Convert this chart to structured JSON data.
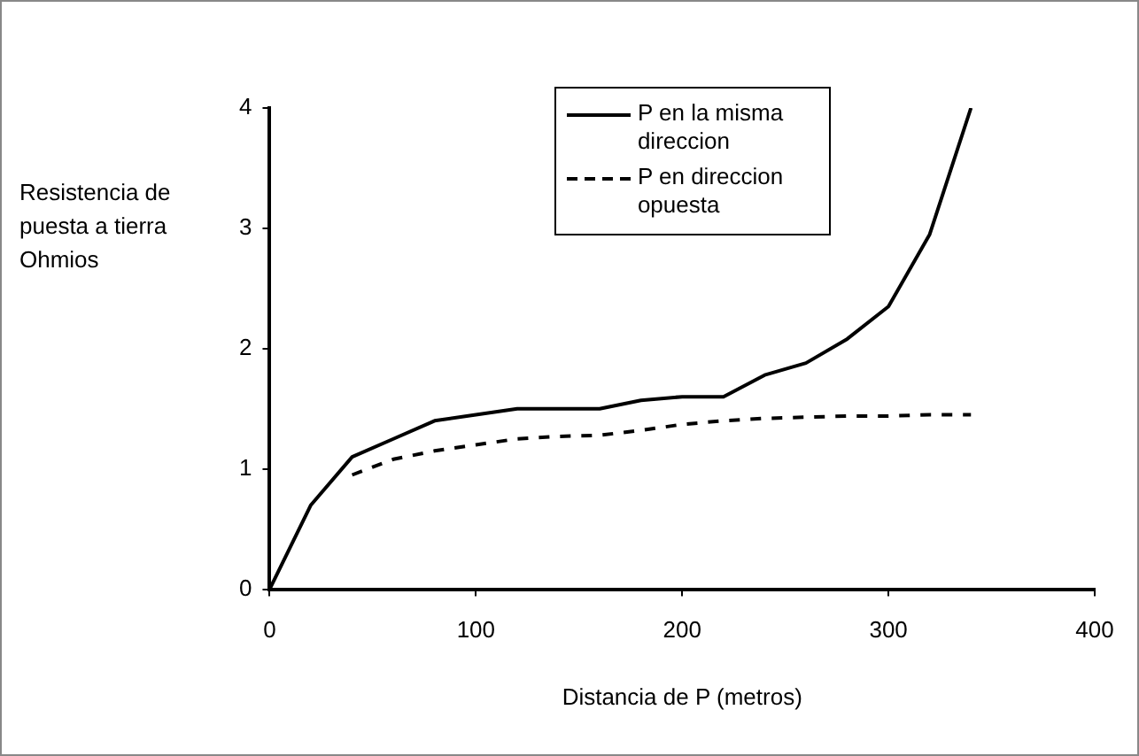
{
  "chart_data": {
    "type": "line",
    "xlabel": "Distancia de P (metros)",
    "ylabel": "Resistencia de puesta a tierra Ohmios",
    "xlim": [
      0,
      400
    ],
    "xticks": [
      0,
      100,
      200,
      300,
      400
    ],
    "ylim": [
      0,
      4
    ],
    "yticks": [
      0,
      1,
      2,
      3,
      4
    ],
    "grid": false,
    "legend": "top right",
    "marker": "none",
    "series": [
      {
        "name": "P en la misma direccion",
        "color": "#000000",
        "line_style": "solid",
        "x": [
          0,
          20,
          40,
          60,
          80,
          100,
          120,
          140,
          160,
          180,
          200,
          220,
          240,
          260,
          280,
          300,
          320,
          340
        ],
        "values": [
          0,
          0.7,
          1.1,
          1.25,
          1.4,
          1.45,
          1.5,
          1.5,
          1.5,
          1.57,
          1.6,
          1.6,
          1.78,
          1.88,
          2.08,
          2.35,
          2.95,
          4
        ]
      },
      {
        "name": "P en direccion opuesta",
        "color": "#000000",
        "line_style": "dashed",
        "x": [
          40,
          60,
          80,
          100,
          120,
          140,
          160,
          180,
          200,
          220,
          240,
          260,
          280,
          300,
          320,
          340
        ],
        "values": [
          0.95,
          1.08,
          1.15,
          1.2,
          1.25,
          1.27,
          1.28,
          1.32,
          1.37,
          1.4,
          1.42,
          1.43,
          1.44,
          1.44,
          1.45,
          1.45
        ]
      }
    ]
  }
}
